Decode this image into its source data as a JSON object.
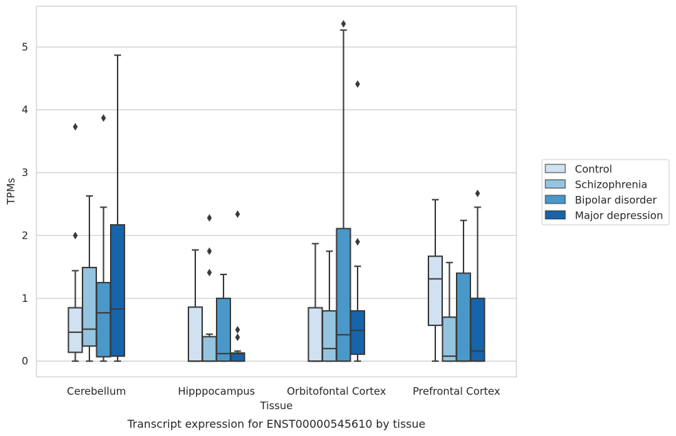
{
  "chart_data": {
    "type": "box",
    "title": "Transcript expression for ENST00000545610 by tissue",
    "xlabel": "Tissue",
    "ylabel": "TPMs",
    "ylim": [
      -0.25,
      5.65
    ],
    "yticks": [
      0,
      1,
      2,
      3,
      4,
      5
    ],
    "grid": true,
    "legend_position": "right",
    "categories": [
      "Cerebellum",
      "Hipppocampus",
      "Orbitofontal Cortex",
      "Prefrontal Cortex"
    ],
    "series": [
      {
        "name": "Control",
        "color": "#d0e1f2",
        "boxes": [
          {
            "whislo": 0,
            "q1": 0.14,
            "med": 0.46,
            "q3": 0.85,
            "whishi": 1.44,
            "fliers": [
              2.0,
              3.73
            ]
          },
          {
            "whislo": 0,
            "q1": 0,
            "med": 0,
            "q3": 0.86,
            "whishi": 1.77,
            "fliers": []
          },
          {
            "whislo": 0,
            "q1": 0,
            "med": 0,
            "q3": 0.85,
            "whishi": 1.87,
            "fliers": []
          },
          {
            "whislo": 0,
            "q1": 0.57,
            "med": 1.31,
            "q3": 1.67,
            "whishi": 2.57,
            "fliers": []
          }
        ]
      },
      {
        "name": "Schizophrenia",
        "color": "#94c4df",
        "boxes": [
          {
            "whislo": 0,
            "q1": 0.24,
            "med": 0.51,
            "q3": 1.49,
            "whishi": 2.63,
            "fliers": []
          },
          {
            "whislo": 0,
            "q1": 0,
            "med": 0,
            "q3": 0.39,
            "whishi": 0.43,
            "fliers": [
              1.41,
              1.75,
              2.28
            ]
          },
          {
            "whislo": 0,
            "q1": 0,
            "med": 0.2,
            "q3": 0.8,
            "whishi": 1.75,
            "fliers": []
          },
          {
            "whislo": 0,
            "q1": 0,
            "med": 0.08,
            "q3": 0.7,
            "whishi": 1.57,
            "fliers": []
          }
        ]
      },
      {
        "name": "Bipolar disorder",
        "color": "#4a98c9",
        "boxes": [
          {
            "whislo": 0,
            "q1": 0.07,
            "med": 0.77,
            "q3": 1.25,
            "whishi": 2.45,
            "fliers": [
              3.87
            ]
          },
          {
            "whislo": 0,
            "q1": 0,
            "med": 0.12,
            "q3": 1.0,
            "whishi": 1.38,
            "fliers": []
          },
          {
            "whislo": 0,
            "q1": 0,
            "med": 0.42,
            "q3": 2.11,
            "whishi": 5.27,
            "fliers": [
              5.37
            ]
          },
          {
            "whislo": 0,
            "q1": 0,
            "med": 0,
            "q3": 1.4,
            "whishi": 2.24,
            "fliers": []
          }
        ]
      },
      {
        "name": "Major depression",
        "color": "#1764ab",
        "boxes": [
          {
            "whislo": 0,
            "q1": 0.08,
            "med": 0.83,
            "q3": 2.17,
            "whishi": 4.87,
            "fliers": []
          },
          {
            "whislo": 0,
            "q1": 0,
            "med": 0.12,
            "q3": 0.13,
            "whishi": 0.16,
            "fliers": [
              0.38,
              0.5,
              2.34
            ]
          },
          {
            "whislo": 0,
            "q1": 0.11,
            "med": 0.49,
            "q3": 0.8,
            "whishi": 1.51,
            "fliers": [
              1.9,
              4.41
            ]
          },
          {
            "whislo": 0,
            "q1": 0,
            "med": 0.16,
            "q3": 1.0,
            "whishi": 2.45,
            "fliers": [
              2.67
            ]
          }
        ]
      }
    ]
  }
}
